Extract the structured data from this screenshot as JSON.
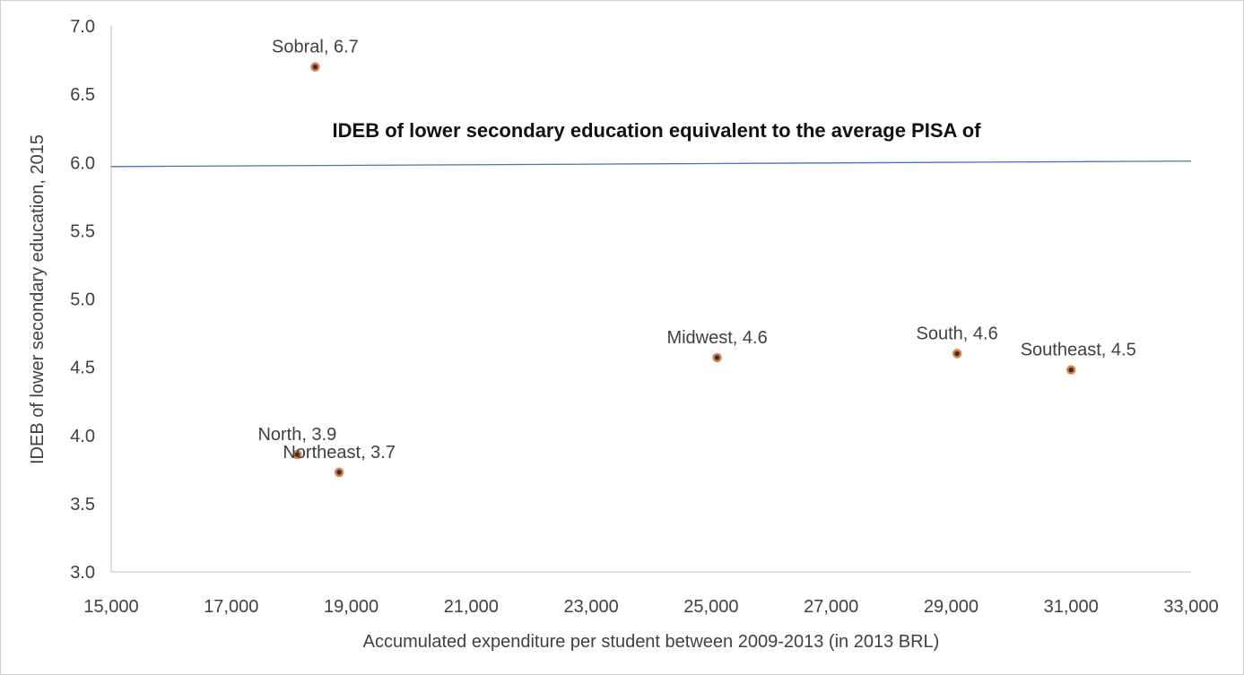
{
  "chart_data": {
    "type": "scatter",
    "title": "",
    "xlabel": "Accumulated expenditure per student between 2009-2013 (in 2013 BRL)",
    "ylabel": "IDEB of lower secondary education, 2015",
    "xlim": [
      15000,
      33000
    ],
    "ylim": [
      3.0,
      7.0
    ],
    "grid": false,
    "legend": null,
    "x_ticks": [
      15000,
      17000,
      19000,
      21000,
      23000,
      25000,
      27000,
      29000,
      31000,
      33000
    ],
    "x_tick_labels": [
      "15,000",
      "17,000",
      "19,000",
      "21,000",
      "23,000",
      "25,000",
      "27,000",
      "29,000",
      "31,000",
      "33,000"
    ],
    "y_ticks": [
      3.0,
      3.5,
      4.0,
      4.5,
      5.0,
      5.5,
      6.0,
      6.5,
      7.0
    ],
    "y_tick_labels": [
      "3.0",
      "3.5",
      "4.0",
      "4.5",
      "5.0",
      "5.5",
      "6.0",
      "6.5",
      "7.0"
    ],
    "points": [
      {
        "name": "Sobral",
        "label": "Sobral, 6.7",
        "x": 18400,
        "y": 6.7
      },
      {
        "name": "North",
        "label": "North, 3.9",
        "x": 18100,
        "y": 3.86
      },
      {
        "name": "Northeast",
        "label": "Northeast, 3.7",
        "x": 18800,
        "y": 3.73
      },
      {
        "name": "Midwest",
        "label": "Midwest, 4.6",
        "x": 25100,
        "y": 4.57
      },
      {
        "name": "South",
        "label": "South, 4.6",
        "x": 29100,
        "y": 4.6
      },
      {
        "name": "Southeast",
        "label": "Southeast, 4.5",
        "x": 31000,
        "y": 4.48,
        "label_dx": 8
      }
    ],
    "reference_line": {
      "label": "IDEB of lower secondary education equivalent to the average PISA of",
      "y_start": 5.97,
      "y_end": 6.01,
      "color": "#4472C4"
    },
    "marker": {
      "fill": "#17375E",
      "stroke": "#ED7D31"
    },
    "colors": {
      "axis_line": "#BFBFBF",
      "tick_text": "#404040",
      "label_text": "#404040",
      "ref_label_text": "#111111"
    }
  }
}
